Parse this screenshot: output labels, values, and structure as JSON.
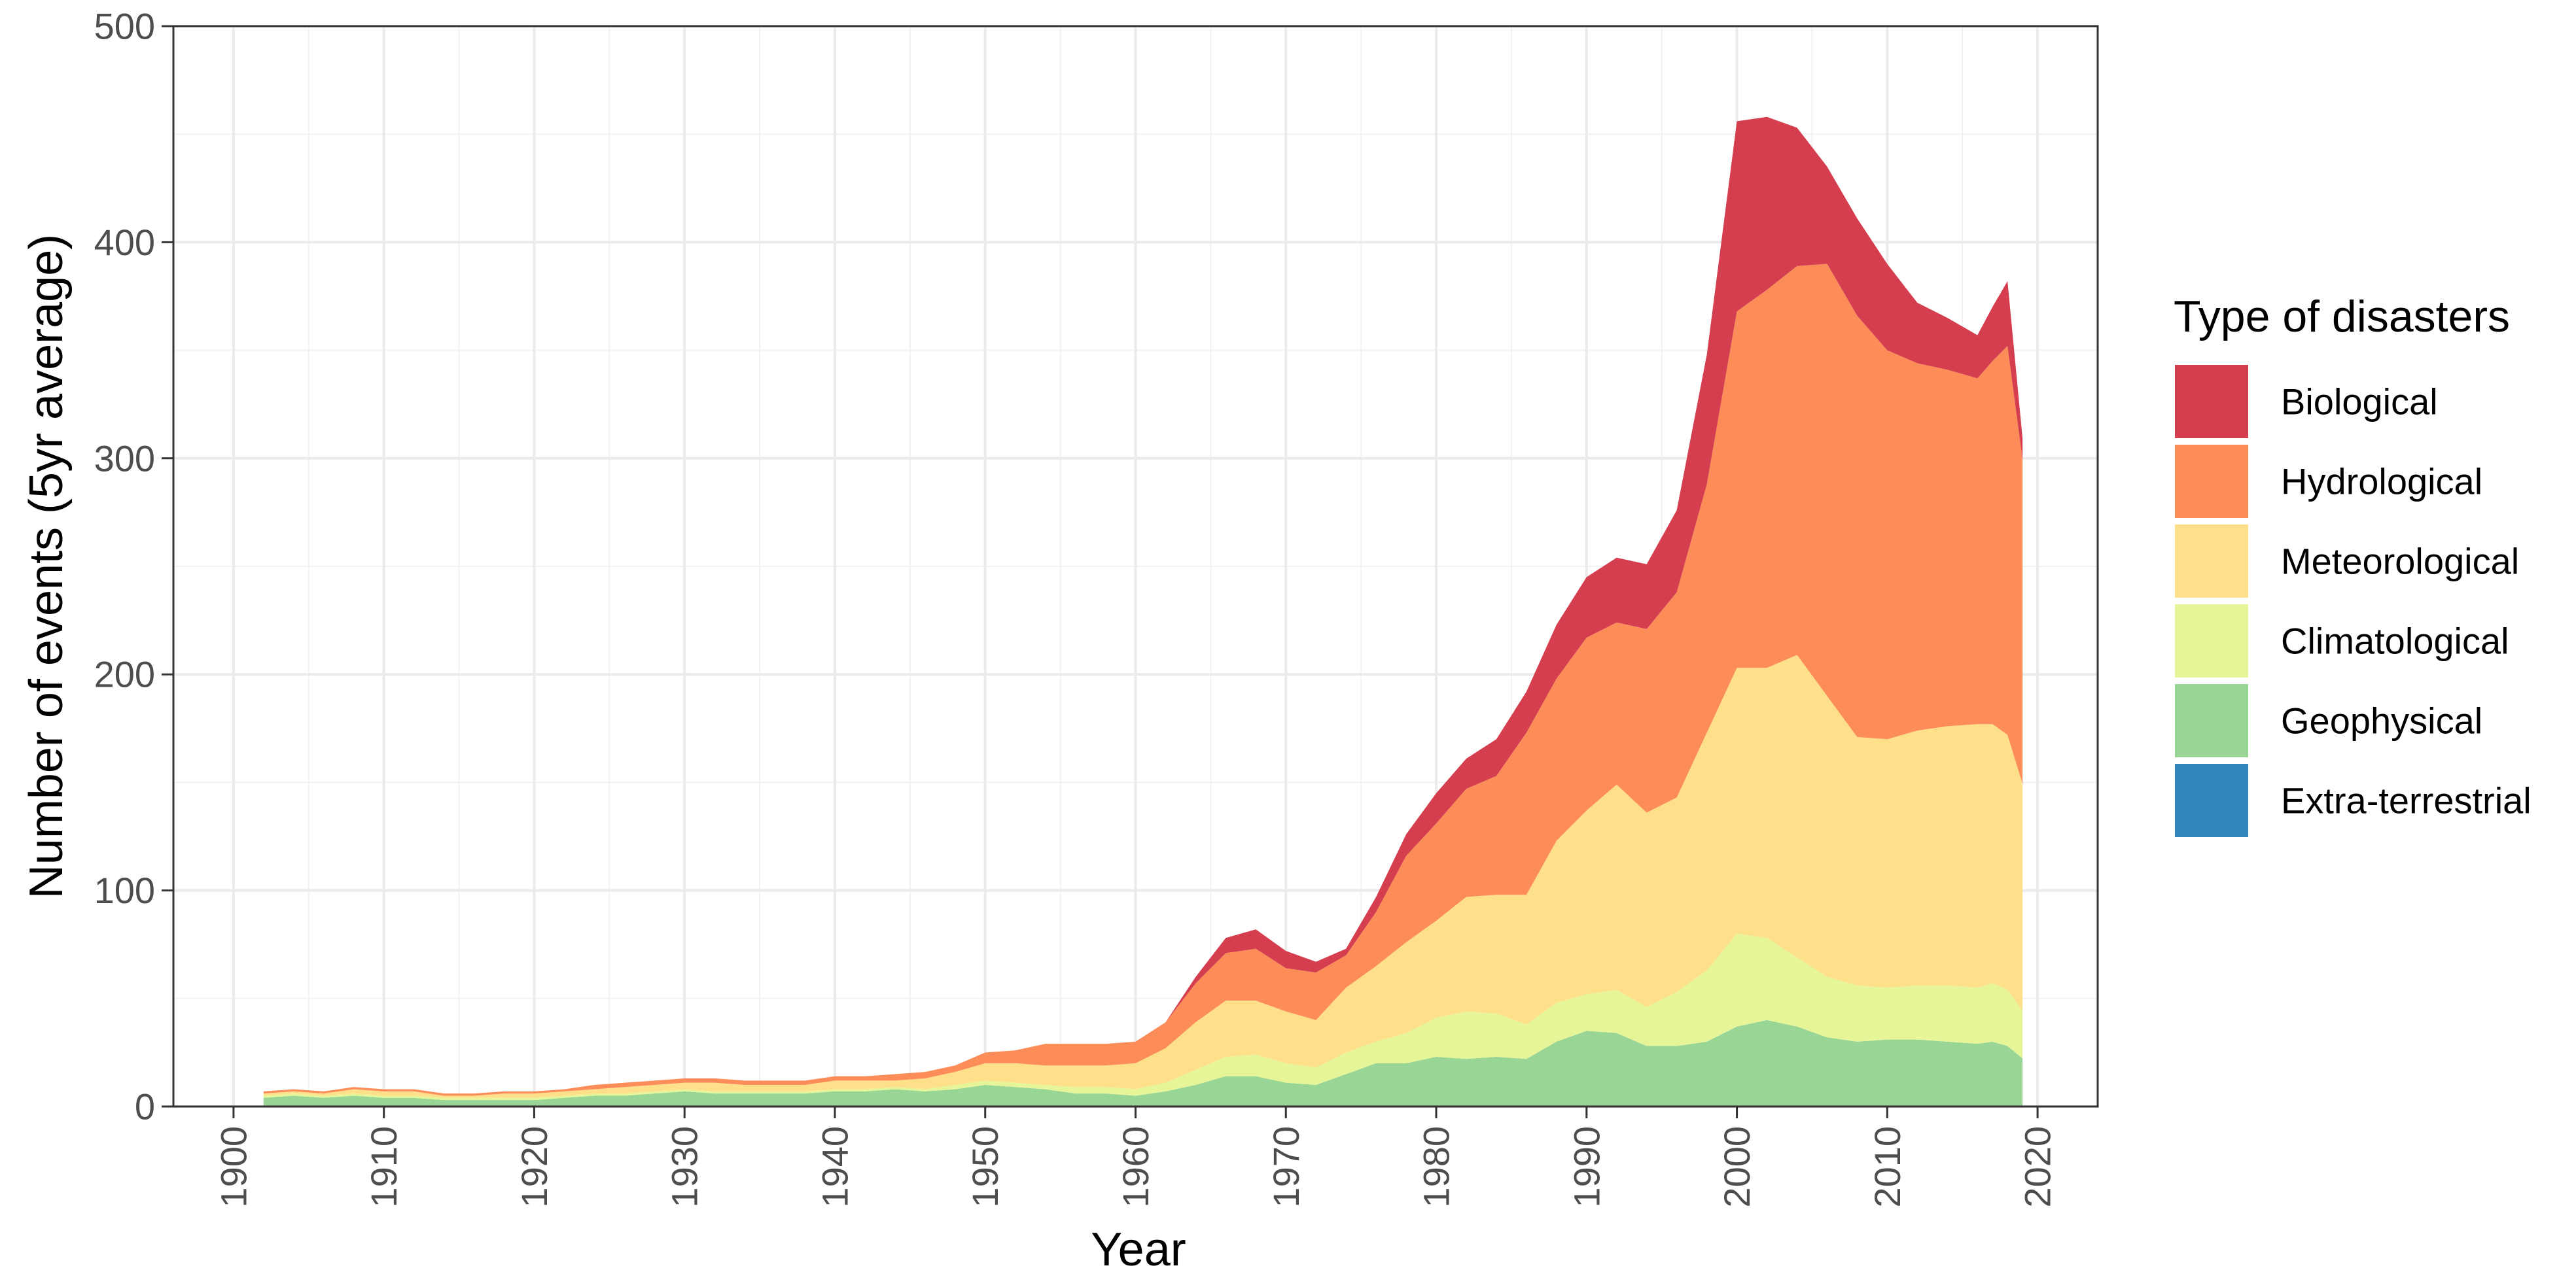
{
  "chart_data": {
    "type": "area",
    "stacked": true,
    "xlabel": "Year",
    "ylabel": "Number of events (5yr average)",
    "xlim": [
      1896,
      2024
    ],
    "ylim": [
      0,
      500
    ],
    "x_ticks": [
      "1900",
      "1910",
      "1920",
      "1930",
      "1940",
      "1950",
      "1960",
      "1970",
      "1980",
      "1990",
      "2000",
      "2010",
      "2020"
    ],
    "y_ticks": [
      "0",
      "100",
      "200",
      "300",
      "400",
      "500"
    ],
    "grid": true,
    "legend": {
      "title": "Type of disasters",
      "position": "right",
      "entries": [
        "Biological",
        "Hydrological",
        "Meteorological",
        "Climatological",
        "Geophysical",
        "Extra-terrestrial"
      ]
    },
    "x": [
      1902,
      1904,
      1906,
      1908,
      1910,
      1912,
      1914,
      1916,
      1918,
      1920,
      1922,
      1924,
      1926,
      1928,
      1930,
      1932,
      1934,
      1936,
      1938,
      1940,
      1942,
      1944,
      1946,
      1948,
      1950,
      1952,
      1954,
      1956,
      1958,
      1960,
      1962,
      1964,
      1966,
      1968,
      1970,
      1972,
      1974,
      1976,
      1978,
      1980,
      1982,
      1984,
      1986,
      1988,
      1990,
      1992,
      1994,
      1996,
      1998,
      2000,
      2002,
      2004,
      2006,
      2008,
      2010,
      2012,
      2014,
      2016,
      2017,
      2018,
      2019
    ],
    "series": [
      {
        "name": "Extra-terrestrial",
        "color": "#3288bd",
        "values": [
          0,
          0,
          0,
          0,
          0,
          0,
          0,
          0,
          0,
          0,
          0,
          0,
          0,
          0,
          0,
          0,
          0,
          0,
          0,
          0,
          0,
          0,
          0,
          0,
          0,
          0,
          0,
          0,
          0,
          0,
          0,
          0,
          0,
          0,
          0,
          0,
          0,
          0,
          0,
          0,
          0,
          0,
          0,
          0,
          0,
          0,
          0,
          0,
          0,
          0,
          0,
          0,
          0,
          0,
          0,
          0,
          0,
          0,
          0,
          0,
          0.3
        ]
      },
      {
        "name": "Geophysical",
        "color": "#99d594",
        "values": [
          4,
          5,
          4,
          5,
          4,
          4,
          3,
          3,
          3,
          3,
          4,
          5,
          5,
          6,
          7,
          6,
          6,
          6,
          6,
          7,
          7,
          8,
          7,
          8,
          10,
          9,
          8,
          6,
          6,
          5,
          7,
          10,
          14,
          14,
          11,
          10,
          15,
          20,
          20,
          23,
          22,
          23,
          22,
          30,
          35,
          34,
          28,
          28,
          30,
          37,
          40,
          37,
          32,
          30,
          31,
          31,
          30,
          29,
          30,
          28,
          22
        ]
      },
      {
        "name": "Climatological",
        "color": "#e6f598",
        "values": [
          1,
          1,
          1,
          1,
          1,
          1,
          1,
          1,
          1,
          1,
          1,
          1,
          1,
          1,
          1,
          1,
          1,
          1,
          1,
          1,
          1,
          1,
          1,
          2,
          2,
          2,
          2,
          3,
          3,
          3,
          4,
          7,
          9,
          10,
          9,
          8,
          10,
          10,
          14,
          18,
          22,
          20,
          16,
          18,
          17,
          20,
          18,
          25,
          33,
          43,
          38,
          32,
          28,
          26,
          24,
          25,
          26,
          26,
          27,
          26,
          22
        ]
      },
      {
        "name": "Meteorological",
        "color": "#fee08b",
        "values": [
          1,
          1,
          1,
          2,
          2,
          2,
          1,
          1,
          2,
          2,
          2,
          2,
          3,
          3,
          3,
          4,
          3,
          3,
          3,
          4,
          4,
          3,
          5,
          6,
          8,
          9,
          9,
          10,
          10,
          12,
          16,
          22,
          26,
          25,
          24,
          22,
          30,
          35,
          42,
          45,
          53,
          55,
          60,
          75,
          85,
          95,
          90,
          90,
          110,
          123,
          125,
          140,
          130,
          115,
          115,
          118,
          120,
          122,
          120,
          118,
          105
        ]
      },
      {
        "name": "Hydrological",
        "color": "#fc8d59",
        "values": [
          1,
          1,
          1,
          1,
          1,
          1,
          1,
          1,
          1,
          1,
          1,
          2,
          2,
          2,
          2,
          2,
          2,
          2,
          2,
          2,
          2,
          3,
          3,
          3,
          5,
          6,
          10,
          10,
          10,
          10,
          12,
          18,
          22,
          24,
          20,
          22,
          15,
          25,
          40,
          45,
          50,
          55,
          75,
          75,
          80,
          75,
          85,
          95,
          115,
          165,
          175,
          180,
          200,
          195,
          180,
          170,
          165,
          160,
          168,
          180,
          150
        ]
      },
      {
        "name": "Biological",
        "color": "#d53e4f",
        "values": [
          0,
          0,
          0,
          0,
          0,
          0,
          0,
          0,
          0,
          0,
          0,
          0,
          0,
          0,
          0,
          0,
          0,
          0,
          0,
          0,
          0,
          0,
          0,
          0,
          0,
          0,
          0,
          0,
          0,
          0,
          0,
          3,
          7,
          9,
          8,
          5,
          3,
          7,
          10,
          14,
          14,
          17,
          19,
          25,
          28,
          30,
          30,
          38,
          60,
          88,
          80,
          64,
          45,
          45,
          40,
          28,
          24,
          20,
          25,
          30,
          10
        ]
      }
    ]
  }
}
